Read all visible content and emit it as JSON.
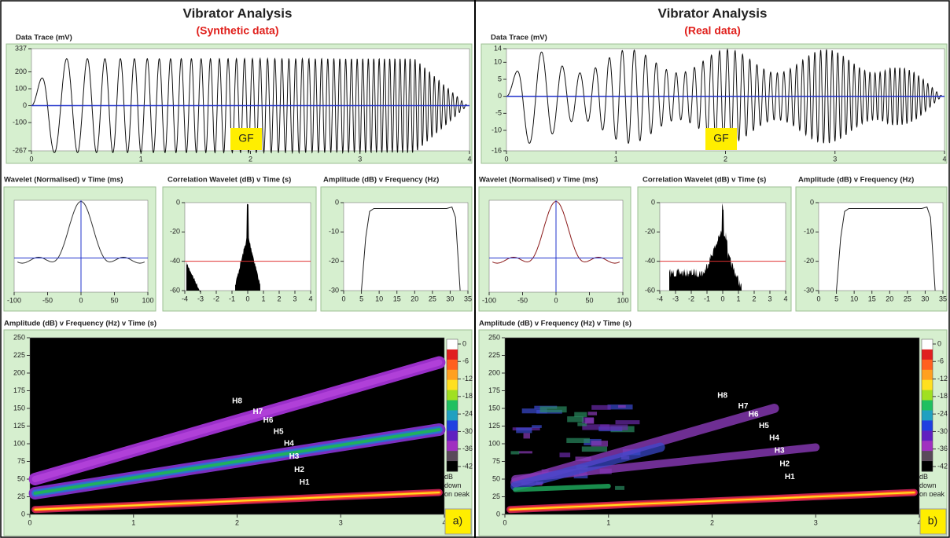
{
  "panels": [
    {
      "title": "Vibrator Analysis",
      "subtitle": "(Synthetic data)",
      "tag": "a)",
      "marker": "GF",
      "trace": {
        "title": "Data Trace (mV)",
        "xlim": [
          0,
          4
        ],
        "xticks": [
          0,
          1,
          2,
          3,
          4
        ],
        "ylim": [
          -267,
          337
        ],
        "yticks": [
          337,
          200,
          100,
          0,
          -100,
          -267
        ]
      },
      "wavelet": {
        "title": "Wavelet (Normalised) v Time (ms)",
        "xlim": [
          -100,
          100
        ],
        "xticks": [
          -100,
          -50,
          0,
          50,
          100
        ]
      },
      "correlation": {
        "title": "Correlation Wavelet (dB) v Time (s)",
        "xlim": [
          -4,
          4
        ],
        "xticks": [
          -4,
          -3,
          -2,
          -1,
          0,
          1,
          2,
          3,
          4
        ],
        "ylim": [
          -60,
          0
        ],
        "yticks": [
          0,
          -20,
          -40,
          -60
        ]
      },
      "spectrum": {
        "title": "Amplitude (dB) v Frequency (Hz)",
        "xlim": [
          0,
          35
        ],
        "xticks": [
          0,
          5,
          10,
          15,
          20,
          25,
          30,
          35
        ],
        "ylim": [
          -30,
          0
        ],
        "yticks": [
          0,
          -10,
          -20,
          -30
        ]
      },
      "spectrogram": {
        "title": "Amplitude (dB) v Frequency (Hz) v Time (s)",
        "xlim": [
          0,
          4
        ],
        "xticks": [
          0,
          1,
          2,
          3,
          4
        ],
        "ylim": [
          0,
          250
        ],
        "yticks": [
          0,
          25,
          50,
          75,
          100,
          125,
          150,
          175,
          200,
          225,
          250
        ],
        "colorbar_ticks": [
          0,
          -6,
          -12,
          -18,
          -24,
          -30,
          -36,
          -42
        ],
        "colorbar_label": "dB down on peak",
        "harmonics": [
          "H8",
          "H7",
          "H6",
          "H5",
          "H4",
          "H3",
          "H2",
          "H1"
        ]
      }
    },
    {
      "title": "Vibrator Analysis",
      "subtitle": "(Real data)",
      "tag": "b)",
      "marker": "GF",
      "trace": {
        "title": "Data Trace (mV)",
        "xlim": [
          0,
          4
        ],
        "xticks": [
          0,
          1,
          2,
          3,
          4
        ],
        "ylim": [
          -16,
          14
        ],
        "yticks": [
          14,
          10,
          5,
          0,
          -5,
          -10,
          -16
        ]
      },
      "wavelet": {
        "title": "Wavelet (Normalised) v Time (ms)",
        "xlim": [
          -100,
          100
        ],
        "xticks": [
          -100,
          -50,
          0,
          50,
          100
        ]
      },
      "correlation": {
        "title": "Correlation Wavelet (dB) v Time (s)",
        "xlim": [
          -4,
          4
        ],
        "xticks": [
          -4,
          -3,
          -2,
          -1,
          0,
          1,
          2,
          3,
          4
        ],
        "ylim": [
          -60,
          0
        ],
        "yticks": [
          0,
          -20,
          -40,
          -60
        ]
      },
      "spectrum": {
        "title": "Amplitude (dB) v Frequency (Hz)",
        "xlim": [
          0,
          35
        ],
        "xticks": [
          0,
          5,
          10,
          15,
          20,
          25,
          30,
          35
        ],
        "ylim": [
          -30,
          0
        ],
        "yticks": [
          0,
          -10,
          -20,
          -30
        ]
      },
      "spectrogram": {
        "title": "Amplitude (dB) v Frequency (Hz) v Time (s)",
        "xlim": [
          0,
          4
        ],
        "xticks": [
          0,
          1,
          2,
          3,
          4
        ],
        "ylim": [
          0,
          250
        ],
        "yticks": [
          0,
          25,
          50,
          75,
          100,
          125,
          150,
          175,
          200,
          225,
          250
        ],
        "colorbar_ticks": [
          0,
          -6,
          -12,
          -18,
          -24,
          -30,
          -36,
          -42
        ],
        "colorbar_label": "dB down on peak",
        "harmonics": [
          "H8",
          "H7",
          "H6",
          "H5",
          "H4",
          "H3",
          "H2",
          "H1"
        ]
      }
    }
  ]
}
